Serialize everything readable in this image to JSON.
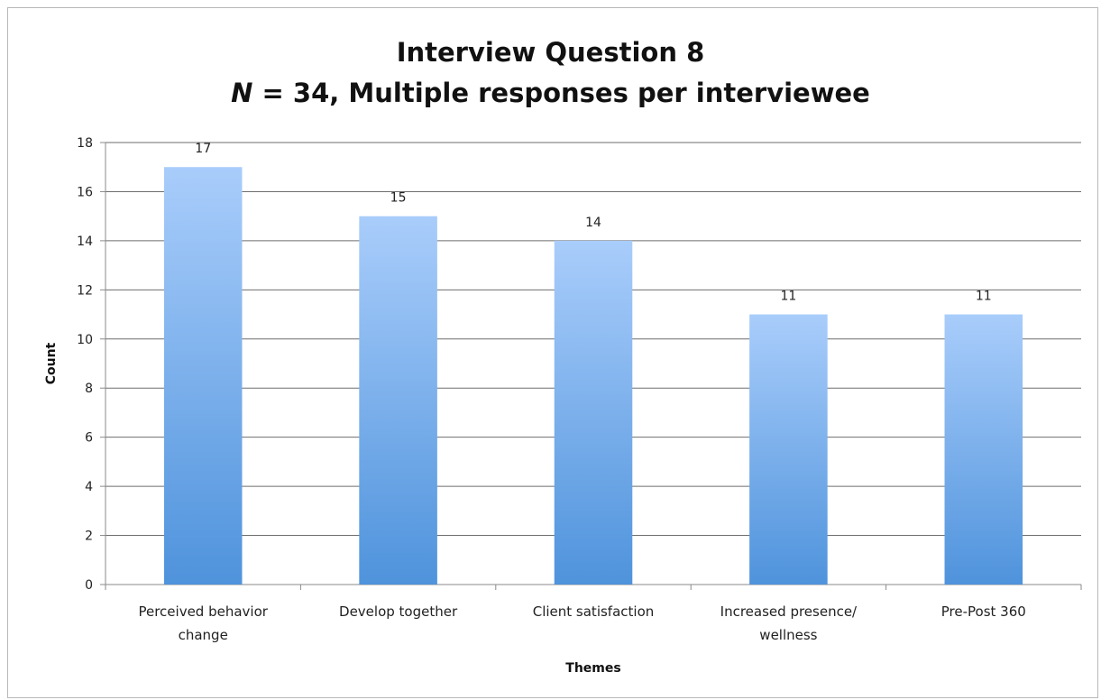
{
  "chart_data": {
    "type": "bar",
    "title": "Interview Question 8",
    "subtitle_italic": "N",
    "subtitle_rest": " = 34, Multiple responses per interviewee",
    "xlabel": "Themes",
    "ylabel": "Count",
    "ylim": [
      0,
      18
    ],
    "yticks": [
      0,
      2,
      4,
      6,
      8,
      10,
      12,
      14,
      16,
      18
    ],
    "grid": true,
    "legend": "none",
    "categories": [
      [
        "Perceived behavior",
        "change"
      ],
      [
        "Develop together"
      ],
      [
        "Client satisfaction"
      ],
      [
        "Increased presence/",
        "wellness"
      ],
      [
        "Pre-Post 360"
      ]
    ],
    "values": [
      17,
      15,
      14,
      11,
      11
    ],
    "data_labels": [
      "17",
      "15",
      "14",
      "11",
      "11"
    ],
    "colors": {
      "bar_top": "#a9cdfb",
      "bar_bottom": "#4f93dc",
      "grid": "#6e6e6e",
      "axis": "#8a8a8a"
    }
  }
}
